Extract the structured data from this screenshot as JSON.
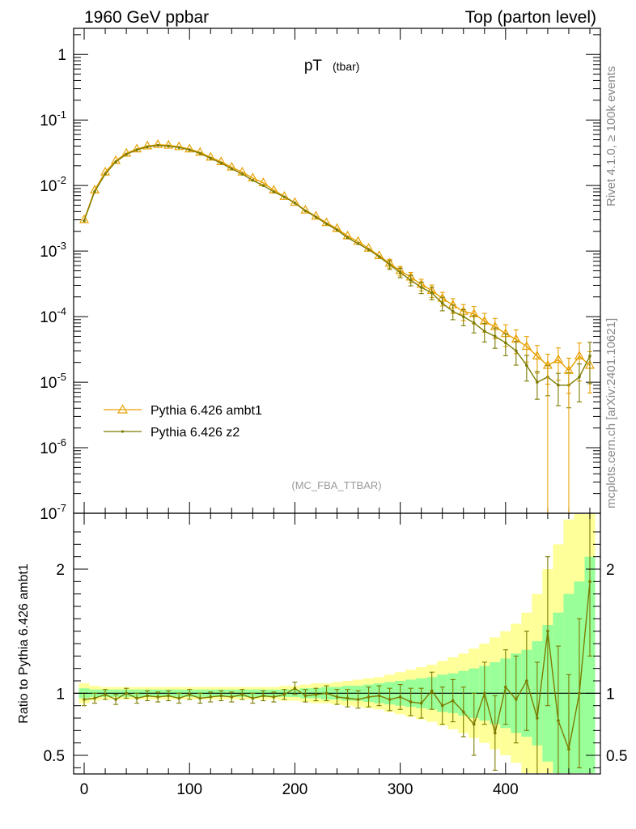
{
  "header": {
    "left": "1960 GeV ppbar",
    "right": "Top (parton level)"
  },
  "side_labels": {
    "top": "Rivet 4.1.0, ≥ 100k events",
    "bottom": "mcplots.cern.ch [arXiv:2401.10621]"
  },
  "chart_data": [
    {
      "type": "line",
      "title": "pT",
      "subtitle": "(tbar)",
      "watermark": "(MC_FBA_TTBAR)",
      "yscale": "log",
      "xlim": [
        -10,
        490
      ],
      "ylim": [
        1e-07,
        2.5
      ],
      "ytick_labels": [
        {
          "base": "10",
          "exp": "-7"
        },
        {
          "base": "10",
          "exp": "-6"
        },
        {
          "base": "10",
          "exp": "-5"
        },
        {
          "base": "10",
          "exp": "-4"
        },
        {
          "base": "10",
          "exp": "-3"
        },
        {
          "base": "10",
          "exp": "-2"
        },
        {
          "base": "10",
          "exp": "-1"
        },
        {
          "base": "1",
          "exp": ""
        }
      ],
      "legend": [
        "Pythia 6.426 ambt1",
        "Pythia 6.426 z2"
      ],
      "legend_position": "bottom-left",
      "x": [
        0,
        10,
        20,
        30,
        40,
        50,
        60,
        70,
        80,
        90,
        100,
        110,
        120,
        130,
        140,
        150,
        160,
        170,
        180,
        190,
        200,
        210,
        220,
        230,
        240,
        250,
        260,
        270,
        280,
        290,
        300,
        310,
        320,
        330,
        340,
        350,
        360,
        370,
        380,
        390,
        400,
        410,
        420,
        430,
        440,
        450,
        460,
        470,
        480
      ],
      "series": [
        {
          "name": "Pythia 6.426 ambt1",
          "color": "#e8a000",
          "marker": "triangle",
          "values": [
            0.003,
            0.0085,
            0.016,
            0.024,
            0.031,
            0.036,
            0.04,
            0.042,
            0.041,
            0.039,
            0.036,
            0.032,
            0.027,
            0.023,
            0.019,
            0.016,
            0.013,
            0.011,
            0.0085,
            0.0068,
            0.0055,
            0.0042,
            0.0034,
            0.0027,
            0.0022,
            0.0017,
            0.0014,
            0.0011,
            0.00085,
            0.00065,
            0.0005,
            0.0004,
            0.00031,
            0.00025,
            0.00019,
            0.00015,
            0.00012,
            0.00011,
            8.5e-05,
            7e-05,
            5.5e-05,
            4.5e-05,
            3.5e-05,
            2.5e-05,
            1.8e-05,
            2.2e-05,
            1.5e-05,
            2.5e-05,
            1.8e-05
          ]
        },
        {
          "name": "Pythia 6.426 z2",
          "color": "#7b7b00",
          "marker": "dot",
          "values": [
            0.0029,
            0.0081,
            0.015,
            0.023,
            0.03,
            0.035,
            0.039,
            0.041,
            0.04,
            0.038,
            0.035,
            0.031,
            0.026,
            0.022,
            0.018,
            0.015,
            0.012,
            0.01,
            0.008,
            0.0067,
            0.0054,
            0.0041,
            0.0033,
            0.0026,
            0.0021,
            0.0016,
            0.0013,
            0.00105,
            0.00082,
            0.00062,
            0.00047,
            0.00036,
            0.00028,
            0.00023,
            0.00016,
            0.00012,
            0.0001,
            8e-05,
            6e-05,
            5e-05,
            4e-05,
            3e-05,
            1.8e-05,
            1e-05,
            1.2e-05,
            9e-06,
            9e-06,
            1.2e-05,
            2.5e-05
          ]
        }
      ]
    },
    {
      "type": "line",
      "ylabel": "Ratio to Pythia 6.426 ambt1",
      "xlim": [
        -10,
        490
      ],
      "ylim": [
        0.35,
        2.45
      ],
      "xticks": [
        0,
        100,
        200,
        300,
        400
      ],
      "yticks": [
        0.5,
        1,
        2
      ],
      "x": [
        0,
        10,
        20,
        30,
        40,
        50,
        60,
        70,
        80,
        90,
        100,
        110,
        120,
        130,
        140,
        150,
        160,
        170,
        180,
        190,
        200,
        210,
        220,
        230,
        240,
        250,
        260,
        270,
        280,
        290,
        300,
        310,
        320,
        330,
        340,
        350,
        360,
        370,
        380,
        390,
        400,
        410,
        420,
        430,
        440,
        450,
        460,
        470,
        480
      ],
      "band_inner_halfwidth": [
        0.04,
        0.03,
        0.03,
        0.03,
        0.03,
        0.03,
        0.03,
        0.03,
        0.03,
        0.03,
        0.03,
        0.03,
        0.03,
        0.03,
        0.03,
        0.03,
        0.03,
        0.03,
        0.03,
        0.03,
        0.03,
        0.04,
        0.04,
        0.05,
        0.05,
        0.06,
        0.06,
        0.07,
        0.08,
        0.09,
        0.1,
        0.11,
        0.12,
        0.13,
        0.15,
        0.16,
        0.18,
        0.2,
        0.22,
        0.25,
        0.28,
        0.32,
        0.35,
        0.42,
        0.55,
        0.65,
        0.8,
        0.9,
        1.1
      ],
      "band_outer_halfwidth": [
        0.08,
        0.06,
        0.05,
        0.05,
        0.05,
        0.05,
        0.05,
        0.05,
        0.05,
        0.05,
        0.05,
        0.05,
        0.05,
        0.05,
        0.05,
        0.05,
        0.05,
        0.05,
        0.05,
        0.06,
        0.06,
        0.07,
        0.08,
        0.08,
        0.09,
        0.1,
        0.11,
        0.12,
        0.13,
        0.15,
        0.17,
        0.19,
        0.21,
        0.23,
        0.26,
        0.29,
        0.32,
        0.36,
        0.4,
        0.45,
        0.5,
        0.56,
        0.65,
        0.8,
        1.0,
        1.2,
        1.4,
        1.6,
        1.8
      ],
      "series": [
        {
          "name": "Pythia 6.426 z2",
          "color": "#7b7b00",
          "values": [
            0.95,
            0.96,
            0.99,
            0.95,
            1.0,
            0.96,
            0.98,
            0.97,
            0.98,
            0.96,
            0.99,
            0.96,
            0.97,
            0.98,
            0.97,
            0.99,
            0.96,
            0.98,
            0.97,
            0.99,
            1.04,
            0.98,
            0.99,
            1.0,
            0.97,
            0.96,
            0.95,
            0.97,
            0.98,
            0.95,
            0.97,
            0.93,
            0.92,
            1.02,
            0.9,
            0.94,
            0.85,
            0.75,
            1.0,
            0.68,
            1.05,
            0.95,
            1.1,
            0.8,
            1.5,
            0.78,
            0.55,
            1.0,
            1.9
          ],
          "errors": [
            0.05,
            0.04,
            0.04,
            0.04,
            0.04,
            0.04,
            0.04,
            0.04,
            0.04,
            0.04,
            0.04,
            0.04,
            0.04,
            0.04,
            0.04,
            0.04,
            0.04,
            0.04,
            0.04,
            0.04,
            0.05,
            0.05,
            0.05,
            0.06,
            0.06,
            0.07,
            0.07,
            0.08,
            0.08,
            0.09,
            0.1,
            0.11,
            0.12,
            0.15,
            0.15,
            0.17,
            0.2,
            0.25,
            0.25,
            0.3,
            0.3,
            0.35,
            0.4,
            0.45,
            0.6,
            0.6,
            0.6,
            0.6,
            0.6
          ]
        }
      ],
      "reference_line": 1
    }
  ]
}
